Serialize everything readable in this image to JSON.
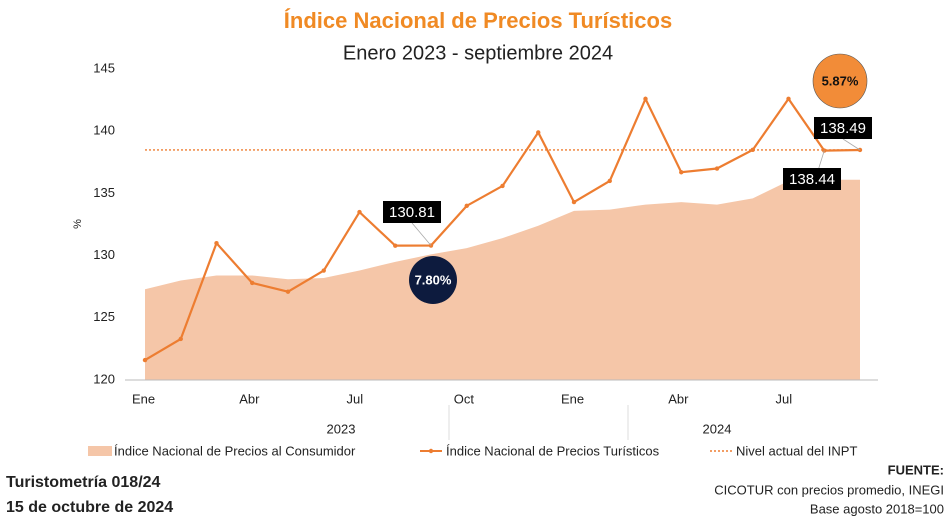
{
  "chart_data": {
    "type": "line",
    "title": "Índice Nacional de Precios Turísticos",
    "subtitle": "Enero 2023 - septiembre 2024",
    "y_label": "%",
    "categories": [
      "Ene",
      null,
      null,
      "Abr",
      null,
      null,
      "Jul",
      null,
      null,
      "Oct",
      null,
      null,
      "Ene",
      null,
      null,
      "Abr",
      null,
      null,
      "Jul",
      null,
      null
    ],
    "groups": [
      "2023",
      "2024"
    ],
    "ylim": [
      120,
      145
    ],
    "yticks": [
      120,
      125,
      130,
      135,
      140,
      145
    ],
    "grid": false,
    "series": [
      {
        "name": "Índice Nacional de Precios al Consumidor",
        "type": "area",
        "color": "#f5c6a8",
        "values": [
          127.3,
          128.0,
          128.4,
          128.4,
          128.1,
          128.2,
          128.8,
          129.5,
          130.1,
          130.6,
          131.4,
          132.4,
          133.6,
          133.7,
          134.1,
          134.3,
          134.1,
          134.6,
          136.0,
          136.1,
          136.1
        ]
      },
      {
        "name": "Índice Nacional de Precios Turísticos",
        "type": "line",
        "color": "#ed7d31",
        "values": [
          121.6,
          123.3,
          131.0,
          127.8,
          127.1,
          128.8,
          133.5,
          130.8,
          130.81,
          134.0,
          135.6,
          139.9,
          134.3,
          136.0,
          142.6,
          136.7,
          137.0,
          138.5,
          142.6,
          138.44,
          138.49
        ]
      },
      {
        "name": "Nivel actual del INPT",
        "type": "hline",
        "color": "#ed7d31",
        "value": 138.49
      }
    ],
    "annotations": [
      {
        "text": "7.80%",
        "color": "#0d1b3e"
      },
      {
        "text": "5.87%",
        "color": "#f28c38"
      }
    ]
  },
  "footer": {
    "left": [
      "Turistometría 018/24",
      "15 de octubre de 2024"
    ],
    "right": [
      "FUENTE:",
      "CICOTUR con precios promedio, INEGI",
      "Base agosto 2018=100"
    ]
  }
}
